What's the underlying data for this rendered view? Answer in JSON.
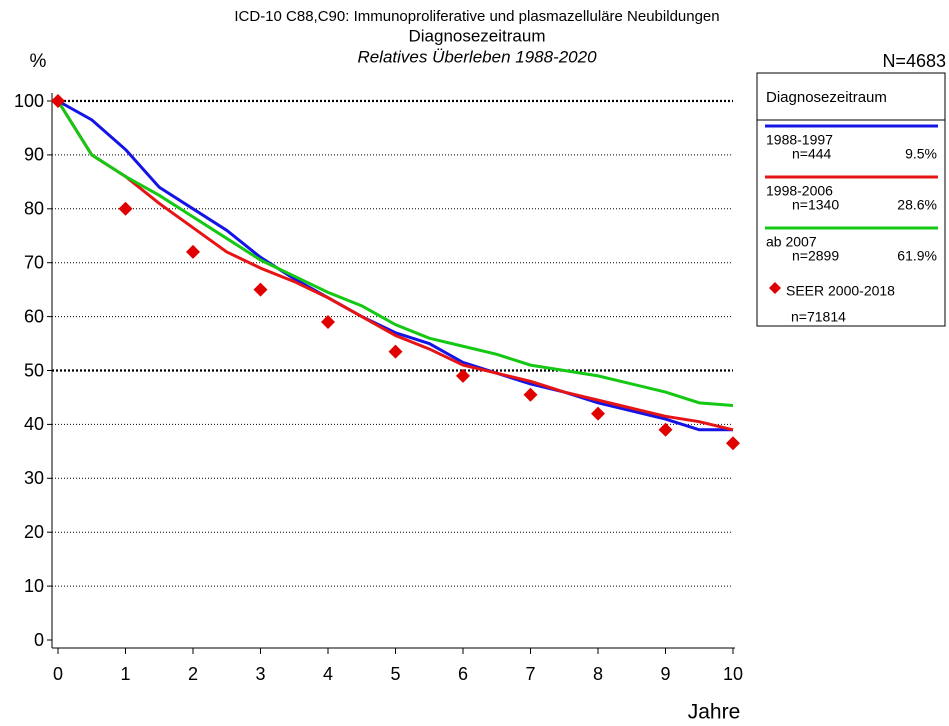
{
  "chart_data": {
    "type": "line",
    "title": "ICD-10 C88,C90: Immunoproliferative und plasmazelluläre Neubildungen",
    "subtitle": "Diagnosezeitraum",
    "subtitle2": "Relatives Überleben 1988-2020",
    "ylabel": "%",
    "xlabel": "Jahre",
    "total_label": "N=4683",
    "legend_title": "Diagnosezeitraum",
    "legend": "right",
    "x": [
      0,
      0.5,
      1,
      1.5,
      2,
      2.5,
      3,
      3.5,
      4,
      4.5,
      5,
      5.5,
      6,
      6.5,
      7,
      7.5,
      8,
      8.5,
      9,
      9.5,
      10
    ],
    "series": [
      {
        "name": "1988-1997",
        "n_label": "n=444",
        "share": "9.5%",
        "color": "#1414e6",
        "values": [
          100,
          96.5,
          91,
          84,
          80,
          76,
          71,
          67,
          63.5,
          60,
          57,
          55,
          51.5,
          49.5,
          47.5,
          46,
          44,
          42.5,
          41,
          39,
          39
        ]
      },
      {
        "name": "1998-2006",
        "n_label": "n=1340",
        "share": "28.6%",
        "color": "#e61414",
        "values": [
          100,
          90,
          86,
          81,
          76.5,
          72,
          69,
          66.5,
          63.5,
          60,
          56.5,
          54,
          51,
          49.5,
          48,
          46,
          44.5,
          43,
          41.5,
          40.5,
          39
        ]
      },
      {
        "name": "ab 2007",
        "n_label": "n=2899",
        "share": "61.9%",
        "color": "#14c814",
        "values": [
          100,
          90,
          86,
          82.5,
          78.5,
          74.5,
          70.5,
          67.5,
          64.5,
          62,
          58.5,
          56,
          54.5,
          53,
          51,
          50,
          49,
          47.5,
          46,
          44,
          43.5
        ]
      },
      {
        "name": "SEER 2000-2018",
        "n_label": "n=71814",
        "color": "#e00000",
        "marker": "diamond",
        "x": [
          0,
          1,
          2,
          3,
          4,
          5,
          6,
          7,
          8,
          9,
          10
        ],
        "values": [
          100,
          80,
          72,
          65,
          59,
          53.5,
          49,
          45.5,
          42,
          39,
          36.5
        ]
      }
    ],
    "xlim": [
      0,
      10
    ],
    "xticks": [
      0,
      1,
      2,
      3,
      4,
      5,
      6,
      7,
      8,
      9,
      10
    ],
    "ylim": [
      0,
      100
    ],
    "yticks": [
      0,
      10,
      20,
      30,
      40,
      50,
      60,
      70,
      80,
      90,
      100
    ],
    "grid": true,
    "emphasized_yticks": [
      50,
      100
    ]
  }
}
